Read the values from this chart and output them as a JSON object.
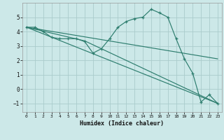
{
  "title": "",
  "xlabel": "Humidex (Indice chaleur)",
  "ylabel": "",
  "bg_color": "#cce8e8",
  "line_color": "#2d7d6e",
  "grid_color": "#aacccc",
  "xlim": [
    -0.5,
    23.5
  ],
  "ylim": [
    -1.6,
    6.0
  ],
  "yticks": [
    -1,
    0,
    1,
    2,
    3,
    4,
    5
  ],
  "xticks": [
    0,
    1,
    2,
    3,
    4,
    5,
    6,
    7,
    8,
    9,
    10,
    11,
    12,
    13,
    14,
    15,
    16,
    17,
    18,
    19,
    20,
    21,
    22,
    23
  ],
  "lines": [
    {
      "x": [
        0,
        1,
        2,
        3,
        4,
        5,
        6,
        7,
        8,
        9,
        10,
        11,
        12,
        13,
        14,
        15,
        16,
        17,
        18,
        19,
        20,
        21,
        22,
        23
      ],
      "y": [
        4.3,
        4.3,
        4.0,
        3.6,
        3.5,
        3.5,
        3.5,
        3.3,
        2.5,
        2.8,
        3.5,
        4.3,
        4.7,
        4.9,
        5.0,
        5.55,
        5.3,
        5.0,
        3.5,
        2.1,
        1.1,
        -0.9,
        -0.4,
        -1.0
      ],
      "marker": true
    },
    {
      "x": [
        0,
        23
      ],
      "y": [
        4.3,
        2.1
      ],
      "marker": false
    },
    {
      "x": [
        0,
        23
      ],
      "y": [
        4.3,
        -1.0
      ],
      "marker": false
    },
    {
      "x": [
        0,
        7,
        23
      ],
      "y": [
        4.3,
        3.35,
        -1.0
      ],
      "marker": false
    }
  ]
}
